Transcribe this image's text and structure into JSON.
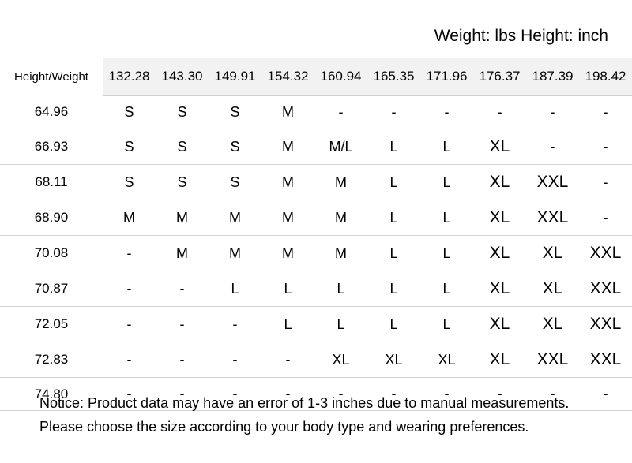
{
  "units_label": "Weight: lbs Height: inch",
  "table": {
    "corner_label": "Height/Weight",
    "weight_columns": [
      "132.28",
      "143.30",
      "149.91",
      "154.32",
      "160.94",
      "165.35",
      "171.96",
      "176.37",
      "187.39",
      "198.42"
    ],
    "height_rows": [
      "64.96",
      "66.93",
      "68.11",
      "68.90",
      "70.08",
      "70.87",
      "72.05",
      "72.83",
      "74.80"
    ],
    "cells": [
      [
        "S",
        "S",
        "S",
        "M",
        "-",
        "-",
        "-",
        "-",
        "-",
        "-"
      ],
      [
        "S",
        "S",
        "S",
        "M",
        "M/L",
        "L",
        "L",
        "XL",
        "-",
        "-"
      ],
      [
        "S",
        "S",
        "S",
        "M",
        "M",
        "L",
        "L",
        "XL",
        "XXL",
        "-"
      ],
      [
        "M",
        "M",
        "M",
        "M",
        "M",
        "L",
        "L",
        "XL",
        "XXL",
        "-"
      ],
      [
        "-",
        "M",
        "M",
        "M",
        "M",
        "L",
        "L",
        "XL",
        "XL",
        "XXL"
      ],
      [
        "-",
        "-",
        "L",
        "L",
        "L",
        "L",
        "L",
        "XL",
        "XL",
        "XXL"
      ],
      [
        "-",
        "-",
        "-",
        "L",
        "L",
        "L",
        "L",
        "XL",
        "XL",
        "XXL"
      ],
      [
        "-",
        "-",
        "-",
        "-",
        "XL",
        "XL",
        "XL",
        "XL",
        "XXL",
        "XXL"
      ],
      [
        "-",
        "-",
        "-",
        "-",
        "-",
        "-",
        "-",
        "-",
        "-",
        "-"
      ]
    ],
    "big_columns": [
      7,
      8,
      9
    ],
    "header_bg": "#f2f2f2",
    "border_color": "#d0d0d0",
    "cell_font_size": 18,
    "big_cell_font_size": 21,
    "header_font_size": 17,
    "corner_font_size": 15
  },
  "notice_line1": "Notice: Product data may have an error of 1-3 inches due to manual measurements.",
  "notice_line2": "Please choose the size according to your body type and wearing preferences."
}
